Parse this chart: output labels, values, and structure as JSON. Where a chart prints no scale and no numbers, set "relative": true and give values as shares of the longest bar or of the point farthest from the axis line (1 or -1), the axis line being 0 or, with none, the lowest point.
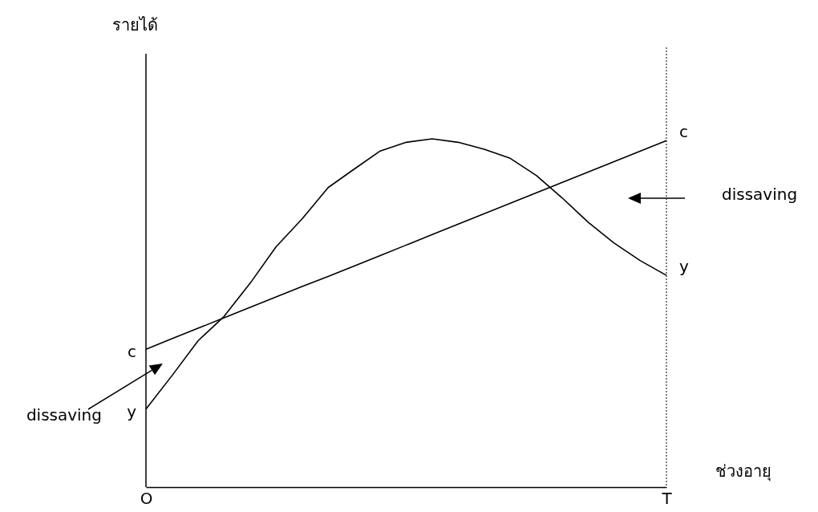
{
  "chart_data": {
    "type": "line",
    "relative": true,
    "xlabel": "ช่วงอายุ",
    "categories": [
      "O",
      null,
      null,
      null,
      null,
      null,
      null,
      null,
      null,
      null,
      null,
      null,
      null,
      null,
      null,
      null,
      null,
      null,
      null,
      null,
      "T"
    ],
    "series": [
      {
        "name": "c",
        "color": "#000000",
        "values": [
          0.396,
          0.426,
          0.456,
          0.486,
          0.516,
          0.546,
          0.576,
          0.605,
          0.635,
          0.665,
          0.695,
          0.725,
          0.755,
          0.785,
          0.815,
          0.845,
          0.875,
          0.905,
          0.935,
          0.965,
          0.995
        ]
      },
      {
        "name": "y",
        "color": "#000000",
        "values": [
          0.224,
          0.32,
          0.42,
          0.49,
          0.585,
          0.69,
          0.77,
          0.86,
          0.913,
          0.965,
          0.99,
          1,
          0.99,
          0.97,
          0.944,
          0.895,
          0.83,
          0.76,
          0.7,
          0.65,
          0.608
        ]
      }
    ],
    "ref_lines": [
      {
        "axis": "x",
        "value": "T",
        "line_style": "dotted"
      }
    ],
    "annotations": [
      "รายได้",
      "dissaving",
      "dissaving"
    ],
    "legend": false,
    "grid": false,
    "line_style": "solid",
    "marker": "none"
  }
}
